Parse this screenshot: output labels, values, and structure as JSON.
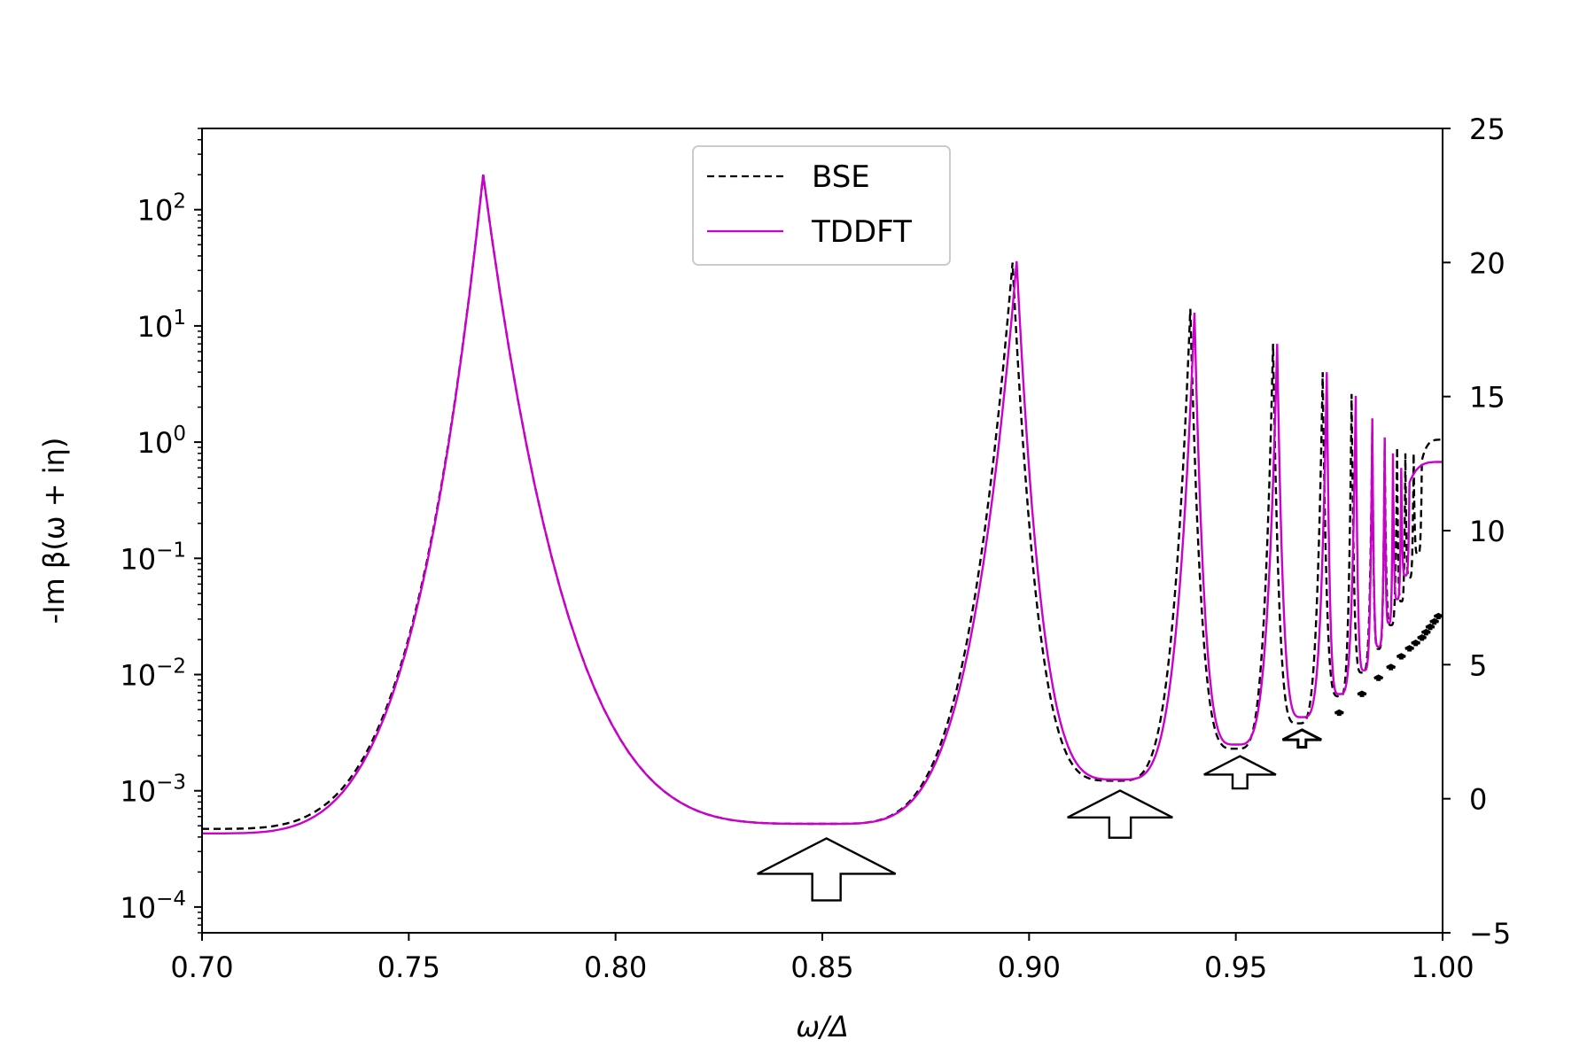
{
  "chart_data": {
    "type": "line",
    "xlabel": "ω/Δ",
    "ylabel": "-Im β(ω + iη)",
    "xlim": [
      0.7,
      1.0
    ],
    "ylim_left": [
      6e-05,
      500
    ],
    "yscale_left": "log",
    "ylim_right": [
      -5,
      25
    ],
    "x_ticks": [
      "0.70",
      "0.75",
      "0.80",
      "0.85",
      "0.90",
      "0.95",
      "1.00"
    ],
    "y_ticks_left": [
      {
        "base": "10",
        "exp": "2",
        "value": 100
      },
      {
        "base": "10",
        "exp": "1",
        "value": 10
      },
      {
        "base": "10",
        "exp": "0",
        "value": 1
      },
      {
        "base": "10",
        "exp": "−1",
        "value": 0.1
      },
      {
        "base": "10",
        "exp": "−2",
        "value": 0.01
      },
      {
        "base": "10",
        "exp": "−3",
        "value": 0.001
      },
      {
        "base": "10",
        "exp": "−4",
        "value": 0.0001
      }
    ],
    "y_ticks_right": [
      "25",
      "20",
      "15",
      "10",
      "5",
      "0",
      "−5"
    ],
    "legend": {
      "placement": "upper-center",
      "entries": [
        {
          "label": "BSE",
          "style": "dashed",
          "color": "#000000"
        },
        {
          "label": "TDDFT",
          "style": "solid",
          "color": "#cc00cc"
        }
      ]
    },
    "series": [
      {
        "name": "BSE",
        "peaks": [
          {
            "x": 0.768,
            "y": 200
          },
          {
            "x": 0.896,
            "y": 35
          },
          {
            "x": 0.939,
            "y": 14
          },
          {
            "x": 0.959,
            "y": 7
          },
          {
            "x": 0.971,
            "y": 4
          },
          {
            "x": 0.978,
            "y": 2.6
          },
          {
            "x": 0.983,
            "y": 1.3
          },
          {
            "x": 0.986,
            "y": 1.0
          },
          {
            "x": 0.989,
            "y": 0.9
          },
          {
            "x": 0.991,
            "y": 0.8
          },
          {
            "x": 0.993,
            "y": 0.8
          },
          {
            "x": 0.995,
            "y": 0.7
          }
        ],
        "minima": [
          {
            "x": 0.7,
            "y": 0.00047
          },
          {
            "x": 0.851,
            "y": 0.00052
          },
          {
            "x": 0.921,
            "y": 0.00122
          },
          {
            "x": 0.95,
            "y": 0.0023
          },
          {
            "x": 0.965,
            "y": 0.0038
          },
          {
            "x": 0.975,
            "y": 0.0065
          }
        ]
      },
      {
        "name": "TDDFT",
        "peaks": [
          {
            "x": 0.768,
            "y": 200
          },
          {
            "x": 0.897,
            "y": 36
          },
          {
            "x": 0.94,
            "y": 13
          },
          {
            "x": 0.96,
            "y": 7
          },
          {
            "x": 0.972,
            "y": 4
          },
          {
            "x": 0.979,
            "y": 2.5
          },
          {
            "x": 0.983,
            "y": 1.6
          },
          {
            "x": 0.986,
            "y": 1.1
          },
          {
            "x": 0.988,
            "y": 0.8
          },
          {
            "x": 0.99,
            "y": 0.6
          },
          {
            "x": 0.992,
            "y": 0.45
          }
        ],
        "minima": [
          {
            "x": 0.7,
            "y": 0.00043
          },
          {
            "x": 0.851,
            "y": 0.00052
          },
          {
            "x": 0.922,
            "y": 0.00125
          },
          {
            "x": 0.95,
            "y": 0.0025
          },
          {
            "x": 0.966,
            "y": 0.0043
          },
          {
            "x": 0.975,
            "y": 0.0068
          }
        ]
      }
    ],
    "right_axis_markers": [
      {
        "x": 0.851,
        "y": -2.8
      },
      {
        "x": 0.922,
        "y": -0.7
      },
      {
        "x": 0.951,
        "y": 0.9
      },
      {
        "x": 0.966,
        "y": 2.2
      },
      {
        "x": 0.975,
        "y": 3.2
      },
      {
        "x": 0.9805,
        "y": 3.9
      },
      {
        "x": 0.9845,
        "y": 4.5
      },
      {
        "x": 0.9875,
        "y": 4.9
      },
      {
        "x": 0.99,
        "y": 5.3
      },
      {
        "x": 0.992,
        "y": 5.6
      },
      {
        "x": 0.9935,
        "y": 5.8
      },
      {
        "x": 0.995,
        "y": 6.0
      },
      {
        "x": 0.996,
        "y": 6.2
      },
      {
        "x": 0.997,
        "y": 6.4
      },
      {
        "x": 0.998,
        "y": 6.6
      },
      {
        "x": 0.999,
        "y": 6.8
      }
    ],
    "grid": false
  }
}
